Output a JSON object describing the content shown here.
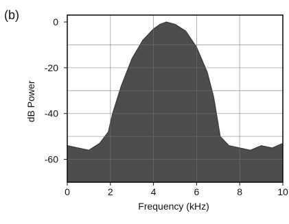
{
  "chart_data": {
    "type": "area",
    "panel_label": "(b)",
    "title": "",
    "xlabel": "Frequency (kHz)",
    "ylabel": "dB Power",
    "xlim": [
      0,
      10
    ],
    "ylim": [
      -70,
      3
    ],
    "xticks": [
      0,
      2,
      4,
      6,
      8,
      10
    ],
    "xtick_labels": [
      "0",
      "2",
      "4",
      "6",
      "8",
      "10"
    ],
    "yticks": [
      0,
      -20,
      -40,
      -60
    ],
    "ytick_labels": [
      "0",
      "-20",
      "-40",
      "-60"
    ],
    "grid": true,
    "legend": "none",
    "fill_color": "#3a3a3a",
    "series": [
      {
        "x": [
          0,
          0.5,
          1,
          1.5,
          1.9,
          2.1,
          2.5,
          3,
          3.5,
          4,
          4.3,
          4.6,
          5,
          5.5,
          6,
          6.5,
          6.8,
          7.1,
          7.5,
          8,
          8.5,
          9,
          9.5,
          10
        ],
        "values": [
          -54,
          -55,
          -56,
          -53,
          -48,
          -40,
          -28,
          -16,
          -8,
          -3,
          -1,
          0,
          -1,
          -4,
          -11,
          -22,
          -33,
          -50,
          -54,
          -55,
          -56,
          -54,
          -55,
          -53
        ]
      }
    ]
  }
}
